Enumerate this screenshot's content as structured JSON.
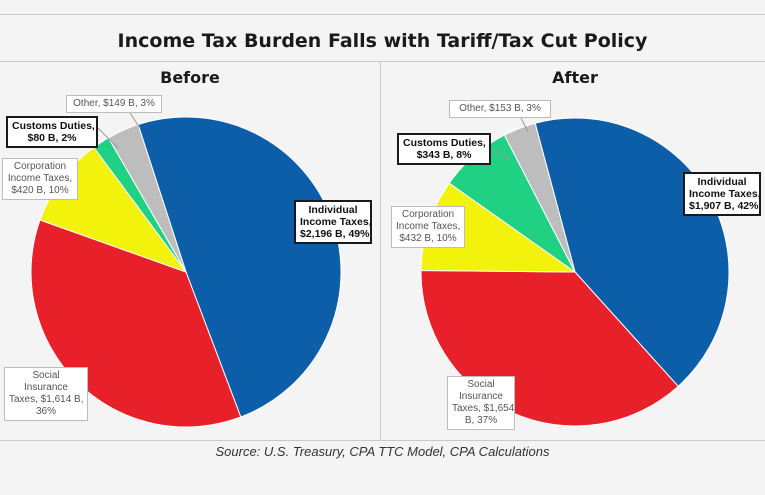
{
  "chart_data": {
    "title": "Income Tax Burden Falls with Tariff/Tax Cut Policy",
    "source": "Source: U.S. Treasury, CPA TTC Model, CPA Calculations",
    "charts": [
      {
        "type": "pie",
        "panel_title": "Before",
        "slices": [
          {
            "key": "individual",
            "value": 2196,
            "percent": 49,
            "color": "#0c5ea8",
            "label_lines": [
              "Individual",
              "Income Taxes,",
              "$2,196 B, 49%"
            ]
          },
          {
            "key": "social",
            "value": 1614,
            "percent": 36,
            "color": "#e8202a",
            "label_lines": [
              "Social",
              "Insurance",
              "Taxes,  $1,614 B,",
              "36%"
            ]
          },
          {
            "key": "corporation",
            "value": 420,
            "percent": 10,
            "color": "#f2f20c",
            "label_lines": [
              "Corporation",
              "Income Taxes,",
              "$420 B, 10%"
            ]
          },
          {
            "key": "customs",
            "value": 80,
            "percent": 2,
            "color": "#20d184",
            "label_lines": [
              "Customs Duties,",
              "$80 B, 2%"
            ]
          },
          {
            "key": "other",
            "value": 149,
            "percent": 3,
            "color": "#bdbdbd",
            "label_lines": [
              "Other,  $149 B, 3%"
            ]
          }
        ]
      },
      {
        "type": "pie",
        "panel_title": "After",
        "slices": [
          {
            "key": "individual",
            "value": 1907,
            "percent": 42,
            "color": "#0c5ea8",
            "label_lines": [
              "Individual",
              "Income Taxes,",
              "$1,907 B, 42%"
            ]
          },
          {
            "key": "social",
            "value": 1654,
            "percent": 37,
            "color": "#e8202a",
            "label_lines": [
              "Social",
              "Insurance",
              "Taxes,  $1,654",
              "B, 37%"
            ]
          },
          {
            "key": "corporation",
            "value": 432,
            "percent": 10,
            "color": "#f2f20c",
            "label_lines": [
              "Corporation",
              "Income Taxes,",
              "$432 B, 10%"
            ]
          },
          {
            "key": "customs",
            "value": 343,
            "percent": 8,
            "color": "#20d184",
            "label_lines": [
              "Customs Duties,",
              "$343 B, 8%"
            ]
          },
          {
            "key": "other",
            "value": 153,
            "percent": 3,
            "color": "#bdbdbd",
            "label_lines": [
              "Other,  $153 B, 3%"
            ]
          }
        ]
      }
    ]
  }
}
